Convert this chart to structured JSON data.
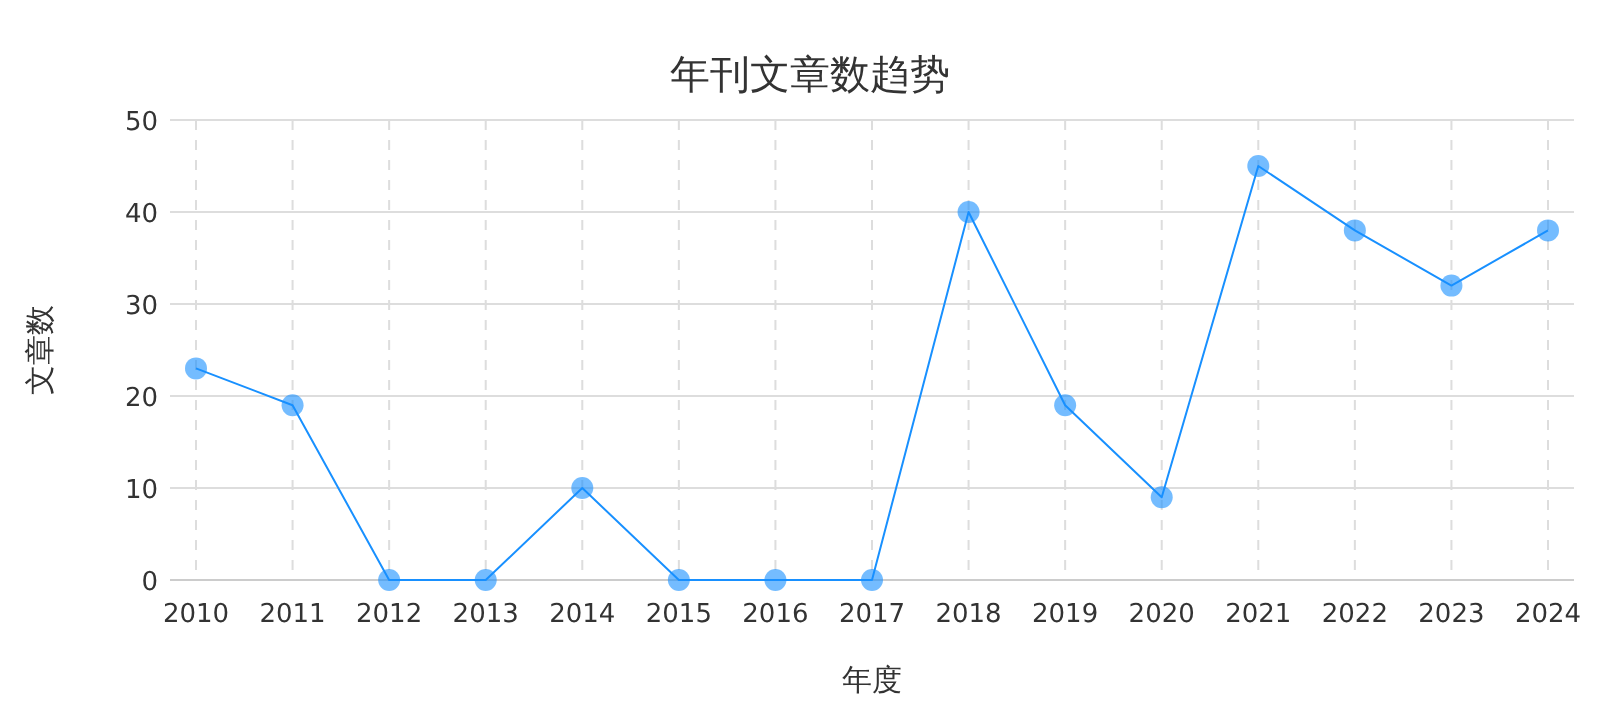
{
  "chart_data": {
    "type": "line",
    "title": "年刊文章数趋势",
    "xlabel": "年度",
    "ylabel": "文章数",
    "categories": [
      "2010",
      "2011",
      "2012",
      "2013",
      "2014",
      "2015",
      "2016",
      "2017",
      "2018",
      "2019",
      "2020",
      "2021",
      "2022",
      "2023",
      "2024"
    ],
    "series": [
      {
        "color": "#1890ff",
        "values": [
          23,
          19,
          0,
          0,
          10,
          0,
          0,
          0,
          40,
          19,
          9,
          45,
          38,
          32,
          38
        ]
      }
    ],
    "ylim": [
      0,
      50
    ],
    "yticks": [
      0,
      10,
      20,
      30,
      40,
      50
    ],
    "grid": true,
    "marker": "circle",
    "line_style": "solid"
  }
}
